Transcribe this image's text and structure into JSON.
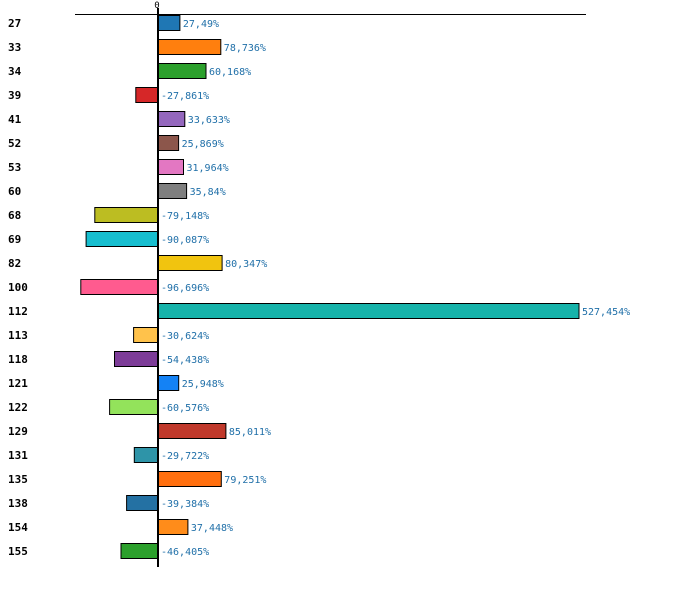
{
  "chart_data": {
    "type": "bar",
    "orientation": "horizontal",
    "title": "",
    "xlabel": "",
    "ylabel": "",
    "x_tick_labels": [
      "0"
    ],
    "unit_suffix": "%",
    "decimal_separator": ",",
    "categories": [
      "27",
      "33",
      "34",
      "39",
      "41",
      "52",
      "53",
      "60",
      "68",
      "69",
      "82",
      "100",
      "112",
      "113",
      "118",
      "121",
      "122",
      "129",
      "131",
      "135",
      "138",
      "154",
      "155"
    ],
    "values": [
      27.49,
      78.736,
      60.168,
      -27.861,
      33.633,
      25.869,
      31.964,
      35.84,
      -79.148,
      -90.087,
      80.347,
      -96.696,
      527.454,
      -30.624,
      -54.438,
      25.948,
      -60.576,
      85.011,
      -29.722,
      79.251,
      -39.384,
      37.448,
      -46.405
    ],
    "value_labels": [
      "27,49%",
      "78,736%",
      "60,168%",
      "-27,861%",
      "33,633%",
      "25,869%",
      "31,964%",
      "35,84%",
      "-79,148%",
      "-90,087%",
      "80,347%",
      "-96,696%",
      "527,454%",
      "-30,624%",
      "-54,438%",
      "25,948%",
      "-60,576%",
      "85,011%",
      "-29,722%",
      "79,251%",
      "-39,384%",
      "37,448%",
      "-46,405%"
    ],
    "colors": [
      "#1f77b4",
      "#ff7f0e",
      "#2ca02c",
      "#d62728",
      "#9467bd",
      "#8c564b",
      "#e377c2",
      "#7f7f7f",
      "#bcbd22",
      "#17becf",
      "#f1c40f",
      "#ff5b8f",
      "#16b3aa",
      "#ffc24b",
      "#7d3c98",
      "#1482f5",
      "#93e35b",
      "#c0392b",
      "#2e94a8",
      "#ff6f0f",
      "#2471a3",
      "#ff8c1a",
      "#2ca02c"
    ],
    "xlim": [
      -105,
      540
    ],
    "grid": false,
    "legend": "none"
  }
}
